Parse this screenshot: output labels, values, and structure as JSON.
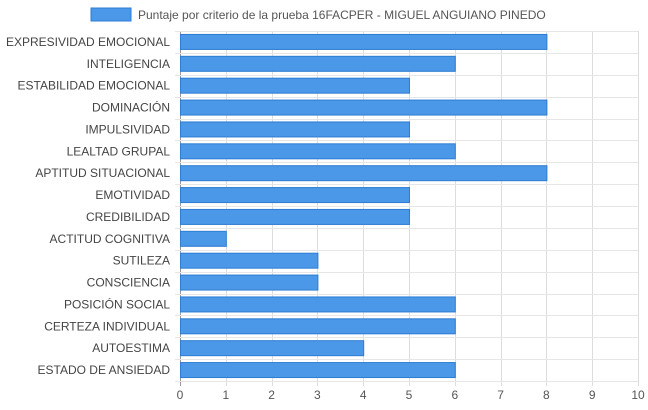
{
  "chart_data": {
    "type": "bar",
    "orientation": "horizontal",
    "categories": [
      "EXPRESIVIDAD EMOCIONAL",
      "INTELIGENCIA",
      "ESTABILIDAD EMOCIONAL",
      "DOMINACIÓN",
      "IMPULSIVIDAD",
      "LEALTAD GRUPAL",
      "APTITUD SITUACIONAL",
      "EMOTIVIDAD",
      "CREDIBILIDAD",
      "ACTITUD COGNITIVA",
      "SUTILEZA",
      "CONSCIENCIA",
      "POSICIÓN SOCIAL",
      "CERTEZA INDIVIDUAL",
      "AUTOESTIMA",
      "ESTADO DE ANSIEDAD"
    ],
    "series": [
      {
        "name": "Puntaje por criterio de la prueba 16FACPER - MIGUEL ANGUIANO PINEDO",
        "values": [
          8,
          6,
          5,
          8,
          5,
          6,
          8,
          5,
          5,
          1,
          3,
          3,
          6,
          6,
          4,
          6
        ],
        "color": "#4b97e8",
        "border_color": "#2d7dd2"
      }
    ],
    "xlim": [
      0,
      10
    ],
    "x_ticks": [
      "0",
      "1",
      "2",
      "3",
      "4",
      "5",
      "6",
      "7",
      "8",
      "9",
      "10"
    ],
    "grid": true,
    "legend_position": "top-center"
  }
}
